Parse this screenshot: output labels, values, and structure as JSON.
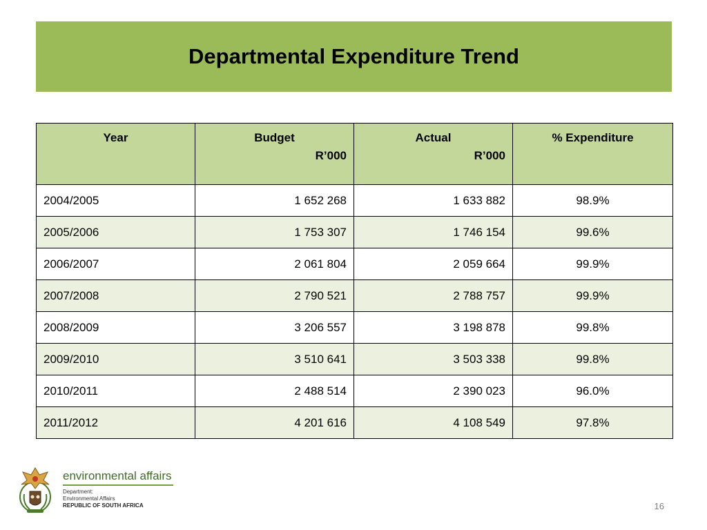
{
  "slide": {
    "title": "Departmental Expenditure Trend",
    "page_number": "16"
  },
  "table": {
    "headers": {
      "year": "Year",
      "budget": "Budget",
      "budget_unit": "R’000",
      "actual": "Actual",
      "actual_unit": "R’000",
      "pct": "% Expenditure"
    },
    "rows": [
      {
        "year": "2004/2005",
        "budget": "1 652 268",
        "actual": "1 633 882",
        "pct": "98.9%"
      },
      {
        "year": "2005/2006",
        "budget": "1 753 307",
        "actual": "1 746 154",
        "pct": "99.6%"
      },
      {
        "year": "2006/2007",
        "budget": "2 061 804",
        "actual": "2 059 664",
        "pct": "99.9%"
      },
      {
        "year": "2007/2008",
        "budget": "2 790 521",
        "actual": "2 788 757",
        "pct": "99.9%"
      },
      {
        "year": "2008/2009",
        "budget": "3 206 557",
        "actual": "3 198 878",
        "pct": "99.8%"
      },
      {
        "year": "2009/2010",
        "budget": "3 510 641",
        "actual": "3 503 338",
        "pct": "99.8%"
      },
      {
        "year": "2010/2011",
        "budget": "2 488 514",
        "actual": "2 390 023",
        "pct": "96.0%"
      },
      {
        "year": "2011/2012",
        "budget": "4 201 616",
        "actual": "4 108 549",
        "pct": "97.8%"
      }
    ]
  },
  "logo": {
    "title": "environmental affairs",
    "line1": "Department:",
    "line2": "Environmental Affairs",
    "line3": "REPUBLIC OF SOUTH AFRICA",
    "crest_icon": "coat-of-arms-icon"
  },
  "colors": {
    "title_bar": "#9bbb59",
    "header_fill": "#c4d79b",
    "alt_row_fill": "#ebf1de"
  }
}
